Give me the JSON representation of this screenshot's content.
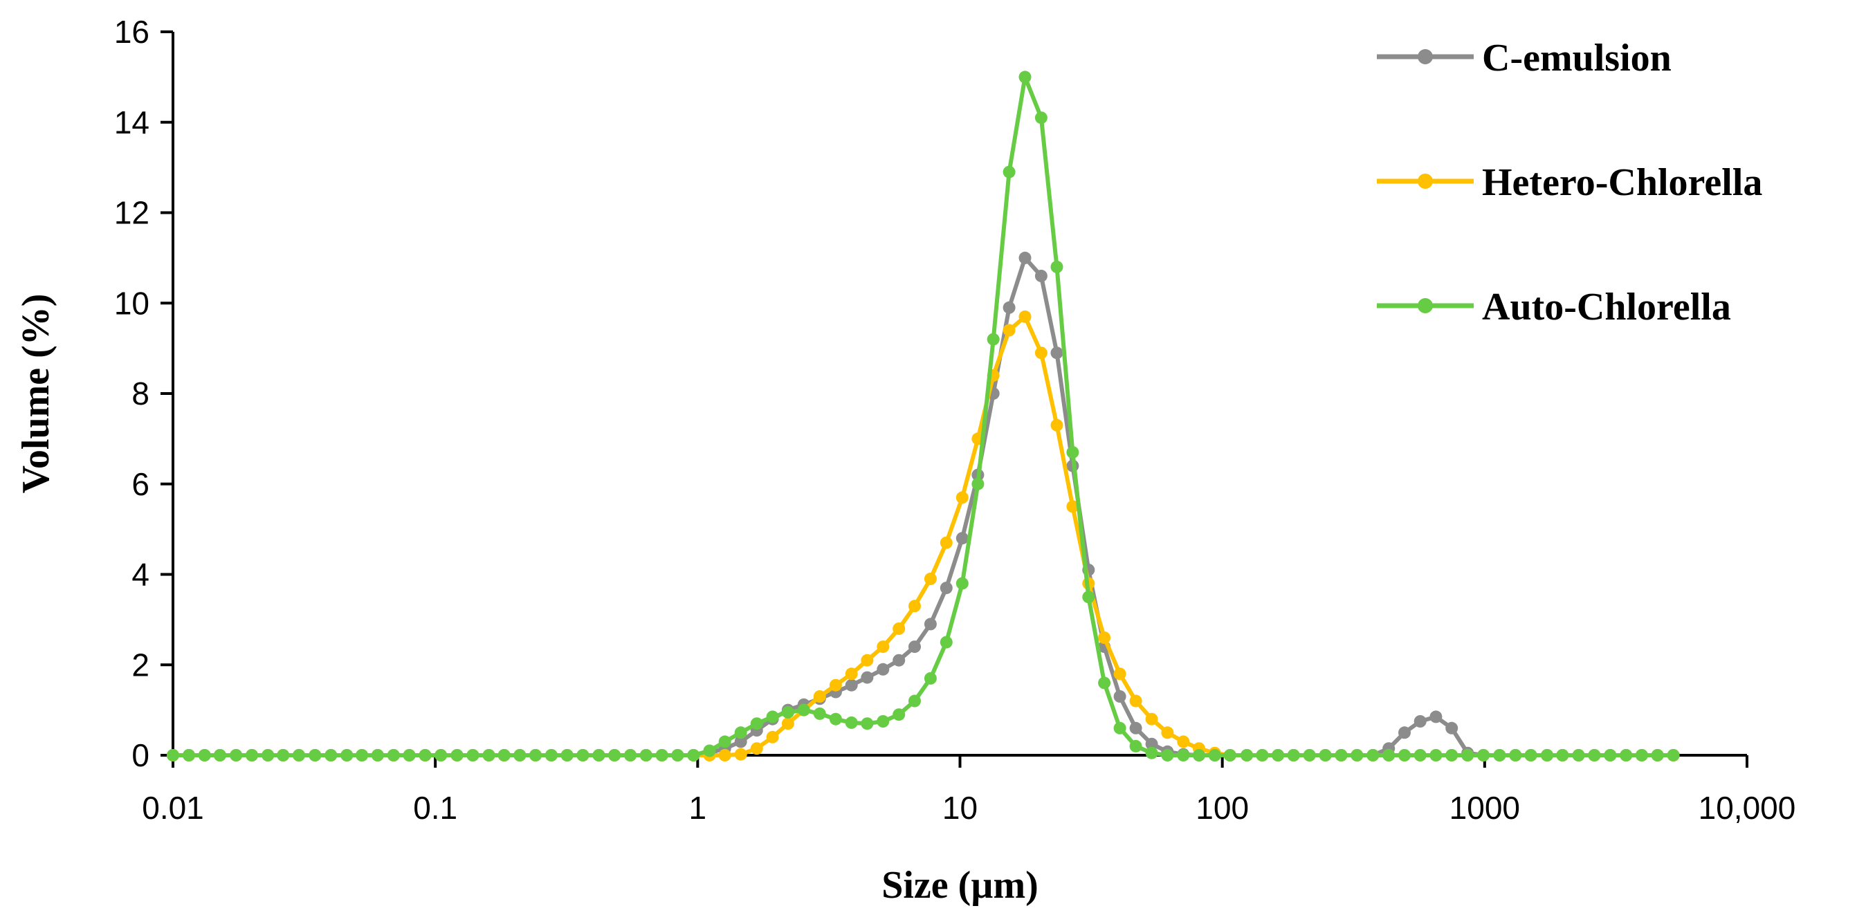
{
  "chart_data": {
    "type": "line",
    "title": "",
    "xlabel": "Size (µm)",
    "ylabel": "Volume (%)",
    "xscale": "log",
    "xlim": [
      0.01,
      10000
    ],
    "ylim": [
      0,
      16
    ],
    "grid": false,
    "legend_position": "top-right",
    "x_ticks": [
      0.01,
      0.1,
      1,
      10,
      100,
      1000,
      10000
    ],
    "x_tick_labels": [
      "0.01",
      "0.1",
      "1",
      "10",
      "100",
      "1000",
      "10,000"
    ],
    "y_ticks": [
      0,
      2,
      4,
      6,
      8,
      10,
      12,
      14,
      16
    ],
    "y_tick_labels": [
      "0",
      "2",
      "4",
      "6",
      "8",
      "10",
      "12",
      "14",
      "16"
    ],
    "x": [
      0.01,
      0.0115,
      0.0132,
      0.0151,
      0.0174,
      0.02,
      0.023,
      0.0263,
      0.0302,
      0.0348,
      0.04,
      0.046,
      0.0525,
      0.0603,
      0.0693,
      0.0796,
      0.0915,
      0.105,
      0.121,
      0.139,
      0.16,
      0.183,
      0.21,
      0.241,
      0.277,
      0.318,
      0.365,
      0.42,
      0.482,
      0.554,
      0.636,
      0.731,
      0.839,
      0.964,
      1.11,
      1.27,
      1.46,
      1.68,
      1.93,
      2.21,
      2.54,
      2.92,
      3.36,
      3.86,
      4.43,
      5.09,
      5.85,
      6.72,
      7.72,
      8.87,
      10.2,
      11.7,
      13.4,
      15.4,
      17.7,
      20.4,
      23.4,
      26.9,
      30.9,
      35.5,
      40.7,
      46.8,
      53.8,
      61.8,
      71,
      81.5,
      93.6,
      107,
      124,
      142,
      163,
      187,
      215,
      247,
      284,
      326,
      375,
      431,
      495,
      568,
      652,
      749,
      861,
      989,
      1140,
      1310,
      1500,
      1730,
      1980,
      2280,
      2620,
      3010,
      3460,
      3970,
      4560,
      5240
    ],
    "series": [
      {
        "name": "C-emulsion",
        "color": "#8c8c8c",
        "values": [
          0,
          0,
          0,
          0,
          0,
          0,
          0,
          0,
          0,
          0,
          0,
          0,
          0,
          0,
          0,
          0,
          0,
          0,
          0,
          0,
          0,
          0,
          0,
          0,
          0,
          0,
          0,
          0,
          0,
          0,
          0,
          0,
          0,
          0,
          0.05,
          0.15,
          0.3,
          0.55,
          0.8,
          1.0,
          1.12,
          1.25,
          1.4,
          1.55,
          1.72,
          1.9,
          2.1,
          2.4,
          2.9,
          3.7,
          4.8,
          6.2,
          8.0,
          9.9,
          11.0,
          10.6,
          8.9,
          6.4,
          4.1,
          2.4,
          1.3,
          0.6,
          0.25,
          0.08,
          0.02,
          0,
          0,
          0,
          0,
          0,
          0,
          0,
          0,
          0,
          0,
          0,
          0,
          0.15,
          0.5,
          0.75,
          0.85,
          0.6,
          0.05,
          0,
          0,
          0,
          0,
          0,
          0,
          0,
          0,
          0,
          0,
          0,
          0,
          0
        ]
      },
      {
        "name": "Hetero-Chlorella",
        "color": "#ffc000",
        "values": [
          0,
          0,
          0,
          0,
          0,
          0,
          0,
          0,
          0,
          0,
          0,
          0,
          0,
          0,
          0,
          0,
          0,
          0,
          0,
          0,
          0,
          0,
          0,
          0,
          0,
          0,
          0,
          0,
          0,
          0,
          0,
          0,
          0,
          0,
          0,
          0,
          0.02,
          0.15,
          0.4,
          0.7,
          1.0,
          1.3,
          1.55,
          1.8,
          2.1,
          2.4,
          2.8,
          3.3,
          3.9,
          4.7,
          5.7,
          7.0,
          8.4,
          9.4,
          9.7,
          8.9,
          7.3,
          5.5,
          3.8,
          2.6,
          1.8,
          1.2,
          0.8,
          0.5,
          0.3,
          0.15,
          0.05,
          0,
          0,
          0,
          0,
          0,
          0,
          0,
          0,
          0,
          0,
          0,
          0,
          0,
          0,
          0,
          0,
          0,
          0,
          0,
          0,
          0,
          0,
          0,
          0,
          0,
          0,
          0,
          0,
          0
        ]
      },
      {
        "name": "Auto-Chlorella",
        "color": "#66cc44",
        "values": [
          0,
          0,
          0,
          0,
          0,
          0,
          0,
          0,
          0,
          0,
          0,
          0,
          0,
          0,
          0,
          0,
          0,
          0,
          0,
          0,
          0,
          0,
          0,
          0,
          0,
          0,
          0,
          0,
          0,
          0,
          0,
          0,
          0,
          0,
          0.1,
          0.3,
          0.5,
          0.7,
          0.85,
          0.95,
          1.0,
          0.92,
          0.8,
          0.72,
          0.7,
          0.75,
          0.9,
          1.2,
          1.7,
          2.5,
          3.8,
          6.0,
          9.2,
          12.9,
          15.0,
          14.1,
          10.8,
          6.7,
          3.5,
          1.6,
          0.6,
          0.2,
          0.05,
          0,
          0,
          0,
          0,
          0,
          0,
          0,
          0,
          0,
          0,
          0,
          0,
          0,
          0,
          0,
          0,
          0,
          0,
          0,
          0,
          0,
          0,
          0,
          0,
          0,
          0,
          0,
          0,
          0,
          0,
          0,
          0,
          0
        ]
      }
    ]
  }
}
